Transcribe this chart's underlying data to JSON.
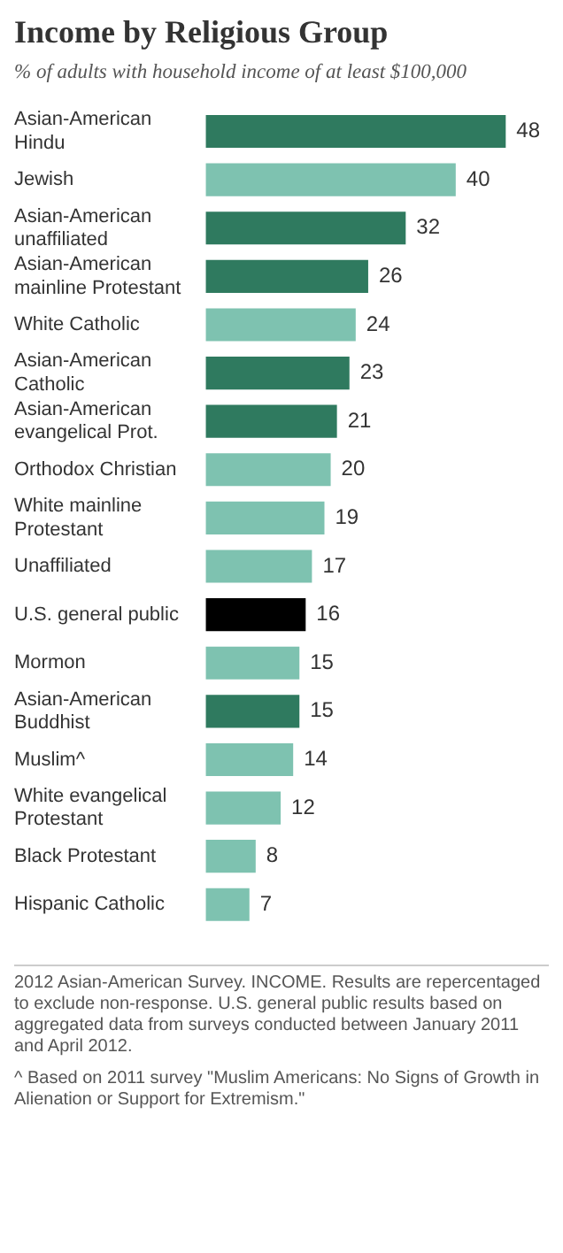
{
  "chart_data": {
    "type": "bar",
    "orientation": "horizontal",
    "title": "Income by Religious Group",
    "subtitle": "% of adults with household income of at least $100,000",
    "categories": [
      "Asian-American Hindu",
      "Jewish",
      "Asian-American unaffiliated",
      "Asian-American mainline Protestant",
      "White Catholic",
      "Asian-American Catholic",
      "Asian-American evangelical Prot.",
      "Orthodox Christian",
      "White mainline Protestant",
      "Unaffiliated",
      "U.S. general public",
      "Mormon",
      "Asian-American Buddhist",
      "Muslim^",
      "White evangelical Protestant",
      "Black Protestant",
      "Hispanic Catholic"
    ],
    "values": [
      48,
      40,
      32,
      26,
      24,
      23,
      21,
      20,
      19,
      17,
      16,
      15,
      15,
      14,
      12,
      8,
      7
    ],
    "colors": [
      "#2f7a5f",
      "#7ec2b0",
      "#2f7a5f",
      "#2f7a5f",
      "#7ec2b0",
      "#2f7a5f",
      "#2f7a5f",
      "#7ec2b0",
      "#7ec2b0",
      "#7ec2b0",
      "#000000",
      "#7ec2b0",
      "#2f7a5f",
      "#7ec2b0",
      "#7ec2b0",
      "#7ec2b0",
      "#7ec2b0"
    ],
    "data_labels": true,
    "legend": false,
    "annotations": [
      "2012 Asian-American Survey. INCOME. Results are repercentaged to exclude non-response. U.S. general public results based on aggregated data from surveys conducted between January 2011 and April 2012.",
      "^ Based on 2011 survey \"Muslim Americans: No Signs of Growth in Alienation or Support for Extremism.\""
    ]
  }
}
